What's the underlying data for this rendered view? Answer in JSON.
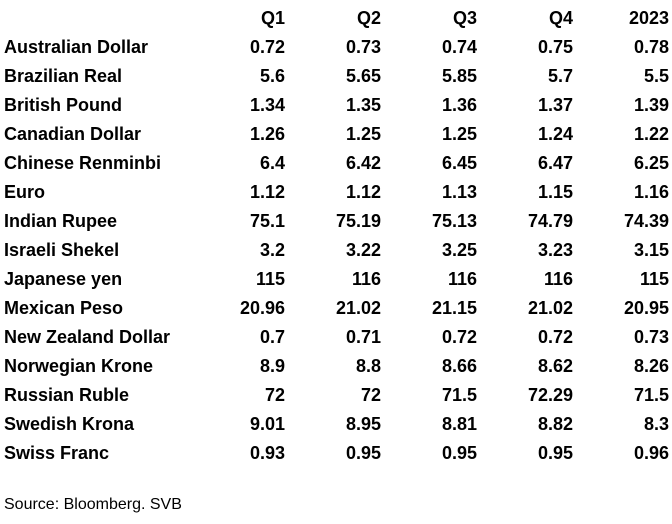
{
  "table": {
    "headers": [
      "",
      "Q1",
      "Q2",
      "Q3",
      "Q4",
      "2023"
    ],
    "rows": [
      {
        "currency": "Australian Dollar",
        "values": [
          "0.72",
          "0.73",
          "0.74",
          "0.75",
          "0.78"
        ]
      },
      {
        "currency": "Brazilian Real",
        "values": [
          "5.6",
          "5.65",
          "5.85",
          "5.7",
          "5.5"
        ]
      },
      {
        "currency": "British Pound",
        "values": [
          "1.34",
          "1.35",
          "1.36",
          "1.37",
          "1.39"
        ]
      },
      {
        "currency": "Canadian Dollar",
        "values": [
          "1.26",
          "1.25",
          "1.25",
          "1.24",
          "1.22"
        ]
      },
      {
        "currency": "Chinese Renminbi",
        "values": [
          "6.4",
          "6.42",
          "6.45",
          "6.47",
          "6.25"
        ]
      },
      {
        "currency": "Euro",
        "values": [
          "1.12",
          "1.12",
          "1.13",
          "1.15",
          "1.16"
        ]
      },
      {
        "currency": "Indian Rupee",
        "values": [
          "75.1",
          "75.19",
          "75.13",
          "74.79",
          "74.39"
        ]
      },
      {
        "currency": "Israeli Shekel",
        "values": [
          "3.2",
          "3.22",
          "3.25",
          "3.23",
          "3.15"
        ]
      },
      {
        "currency": "Japanese yen",
        "values": [
          "115",
          "116",
          "116",
          "116",
          "115"
        ]
      },
      {
        "currency": "Mexican Peso",
        "values": [
          "20.96",
          "21.02",
          "21.15",
          "21.02",
          "20.95"
        ]
      },
      {
        "currency": "New Zealand Dollar",
        "values": [
          "0.7",
          "0.71",
          "0.72",
          "0.72",
          "0.73"
        ]
      },
      {
        "currency": "Norwegian Krone",
        "values": [
          "8.9",
          "8.8",
          "8.66",
          "8.62",
          "8.26"
        ]
      },
      {
        "currency": "Russian Ruble",
        "values": [
          "72",
          "72",
          "71.5",
          "72.29",
          "71.5"
        ]
      },
      {
        "currency": "Swedish Krona",
        "values": [
          "9.01",
          "8.95",
          "8.81",
          "8.82",
          "8.3"
        ]
      },
      {
        "currency": "Swiss Franc",
        "values": [
          "0.93",
          "0.95",
          "0.95",
          "0.95",
          "0.96"
        ]
      }
    ]
  },
  "source": "Source: Bloomberg. SVB"
}
